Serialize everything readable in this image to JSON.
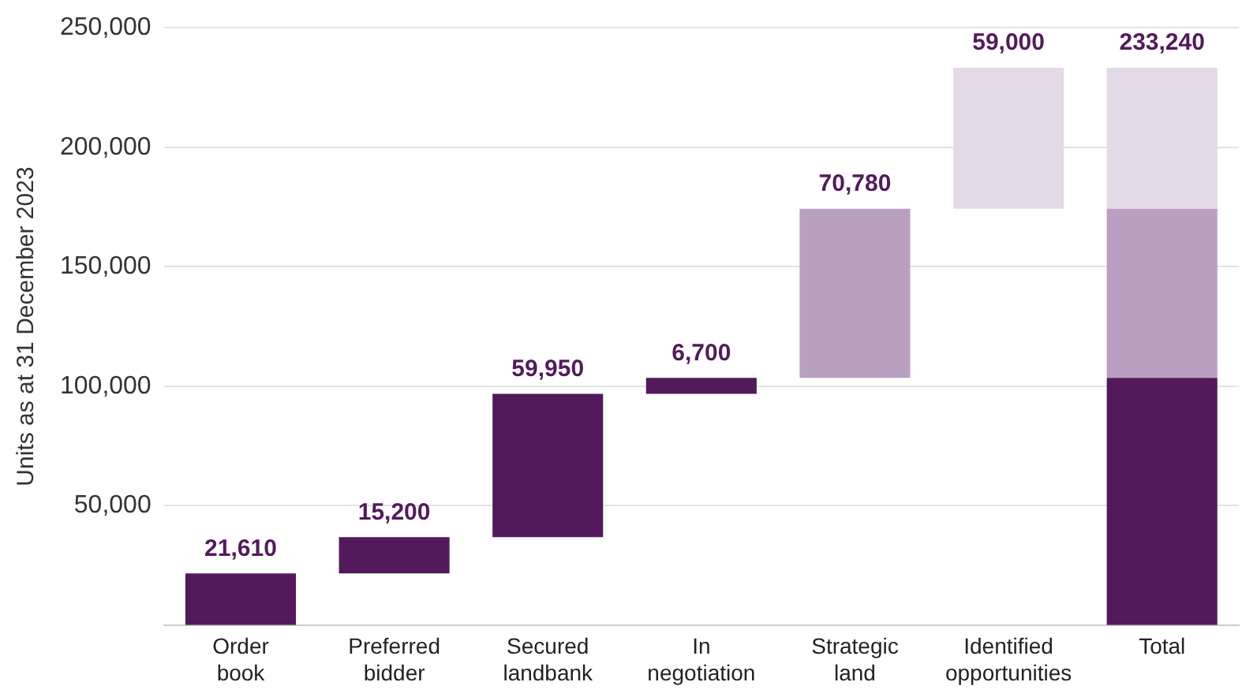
{
  "chart_data": {
    "type": "bar",
    "ylabel": "Units as at 31 December 2023",
    "categories": [
      "Order book",
      "Preferred bidder",
      "Secured landbank",
      "In negotiation",
      "Strategic land",
      "Identified opportunities",
      "Total"
    ],
    "series": [
      {
        "color": "#521a5b",
        "values": [
          21610,
          15200,
          59950,
          6700,
          null,
          null,
          103460
        ],
        "base": [
          0,
          21610,
          36810,
          96760,
          null,
          null,
          0
        ],
        "value_labels": [
          "21,610",
          "15,200",
          "59,950",
          "6,700",
          null,
          null,
          null
        ]
      },
      {
        "color": "#b9a0c0",
        "values": [
          null,
          null,
          null,
          null,
          70780,
          null,
          70780
        ],
        "base": [
          null,
          null,
          null,
          null,
          103460,
          null,
          103460
        ],
        "value_labels": [
          null,
          null,
          null,
          null,
          "70,780",
          null,
          null
        ]
      },
      {
        "color": "#e4d9e6",
        "values": [
          null,
          null,
          null,
          null,
          null,
          59000,
          59000
        ],
        "base": [
          null,
          null,
          null,
          null,
          null,
          174240,
          174240
        ],
        "value_labels": [
          null,
          null,
          null,
          null,
          null,
          "59,000",
          null
        ]
      }
    ],
    "totals": [
      null,
      null,
      null,
      null,
      null,
      null,
      "233,240"
    ],
    "ylim": [
      0,
      250000
    ],
    "yticks": [
      {
        "value": 50000,
        "label": "50,000"
      },
      {
        "value": 100000,
        "label": "100,000"
      },
      {
        "value": 150000,
        "label": "150,000"
      },
      {
        "value": 200000,
        "label": "200,000"
      },
      {
        "value": 250000,
        "label": "250,000"
      }
    ],
    "grid": "y",
    "legend": false
  }
}
